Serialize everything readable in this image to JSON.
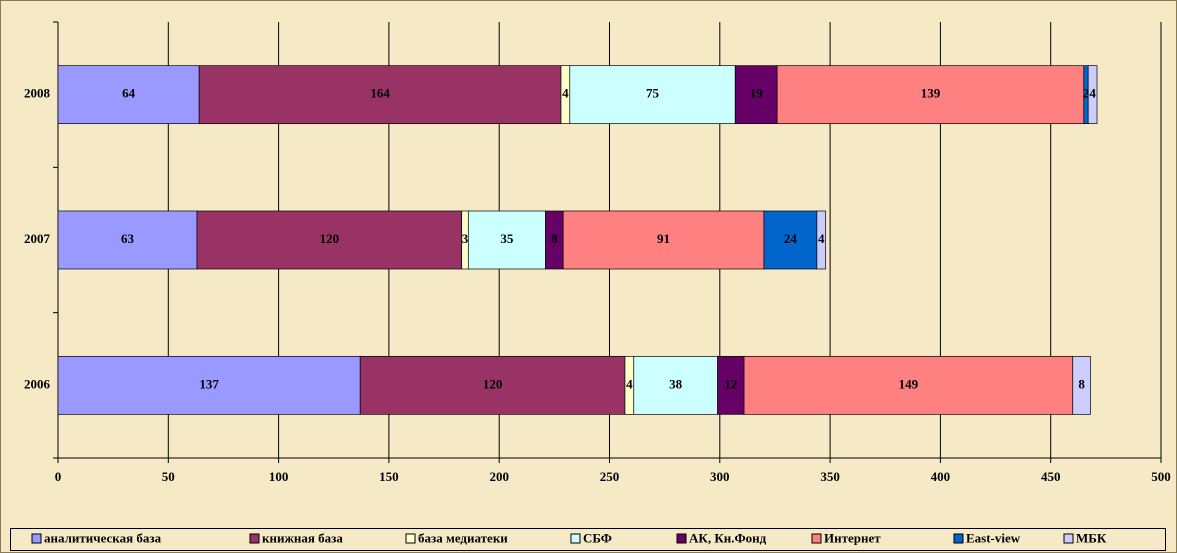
{
  "chart_data": {
    "type": "stacked-barh",
    "categories": [
      "2006",
      "2007",
      "2008"
    ],
    "series": [
      {
        "name": "аналитическая база",
        "color": "#9999ff",
        "values": [
          137,
          63,
          64
        ]
      },
      {
        "name": "книжная база",
        "color": "#993366",
        "values": [
          120,
          120,
          164
        ]
      },
      {
        "name": "база медиатеки",
        "color": "#ffffcc",
        "values": [
          4,
          3,
          4
        ]
      },
      {
        "name": "СБФ",
        "color": "#ccffff",
        "values": [
          38,
          35,
          75
        ]
      },
      {
        "name": "АК, Кн.Фонд",
        "color": "#660066",
        "values": [
          12,
          8,
          19
        ]
      },
      {
        "name": "Интернет",
        "color": "#ff8080",
        "values": [
          149,
          91,
          139
        ]
      },
      {
        "name": "East-view",
        "color": "#0066cc",
        "values": [
          null,
          24,
          2
        ]
      },
      {
        "name": "МБК",
        "color": "#ccccff",
        "values": [
          8,
          4,
          4
        ]
      }
    ],
    "xlim": [
      0,
      500
    ],
    "xticks": [
      0,
      50,
      100,
      150,
      200,
      250,
      300,
      350,
      400,
      450,
      500
    ],
    "grid": true,
    "legend": "bottom"
  }
}
